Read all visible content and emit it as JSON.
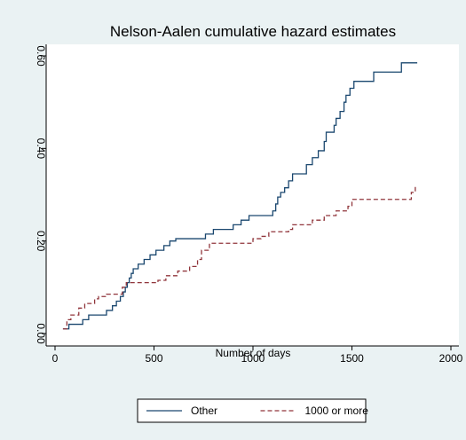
{
  "chart_data": {
    "type": "step",
    "title": "Nelson-Aalen cumulative hazard estimates",
    "x_label": "Number of days",
    "xlim": [
      0,
      2000
    ],
    "xticks": [
      0,
      500,
      1000,
      1500,
      2000
    ],
    "ylim": [
      0,
      0.6
    ],
    "yticks": [
      {
        "value": 0,
        "label": "0.00"
      },
      {
        "value": 0.2,
        "label": "0.20"
      },
      {
        "value": 0.4,
        "label": "0.40"
      },
      {
        "value": 0.6,
        "label": "0.60"
      }
    ],
    "legend": "bottom",
    "series": [
      {
        "name": "Other",
        "color": "#1a476f",
        "dash": "solid",
        "x": [
          40,
          70,
          140,
          170,
          260,
          290,
          310,
          330,
          345,
          355,
          365,
          375,
          385,
          395,
          420,
          450,
          480,
          510,
          550,
          580,
          610,
          760,
          800,
          900,
          940,
          980,
          1100,
          1115,
          1125,
          1140,
          1160,
          1180,
          1200,
          1270,
          1300,
          1330,
          1360,
          1370,
          1410,
          1420,
          1440,
          1460,
          1470,
          1490,
          1510,
          1610,
          1750,
          1830
        ],
        "values": [
          0.01,
          0.02,
          0.03,
          0.04,
          0.05,
          0.06,
          0.07,
          0.08,
          0.09,
          0.1,
          0.11,
          0.12,
          0.13,
          0.14,
          0.15,
          0.16,
          0.17,
          0.18,
          0.19,
          0.2,
          0.205,
          0.215,
          0.225,
          0.235,
          0.245,
          0.255,
          0.265,
          0.28,
          0.295,
          0.305,
          0.315,
          0.33,
          0.345,
          0.365,
          0.38,
          0.395,
          0.415,
          0.435,
          0.45,
          0.465,
          0.48,
          0.5,
          0.515,
          0.53,
          0.545,
          0.565,
          0.585,
          0.585
        ]
      },
      {
        "name": "1000 or more",
        "color": "#90353b",
        "dash": "dashed",
        "x": [
          40,
          60,
          80,
          120,
          150,
          200,
          220,
          260,
          340,
          360,
          520,
          560,
          620,
          680,
          720,
          740,
          780,
          1000,
          1040,
          1080,
          1180,
          1200,
          1300,
          1360,
          1420,
          1480,
          1500,
          1800,
          1820
        ],
        "values": [
          0.01,
          0.03,
          0.04,
          0.055,
          0.065,
          0.075,
          0.08,
          0.085,
          0.1,
          0.11,
          0.115,
          0.125,
          0.135,
          0.145,
          0.16,
          0.18,
          0.195,
          0.205,
          0.21,
          0.22,
          0.225,
          0.235,
          0.245,
          0.255,
          0.265,
          0.275,
          0.29,
          0.305,
          0.32
        ]
      }
    ]
  }
}
